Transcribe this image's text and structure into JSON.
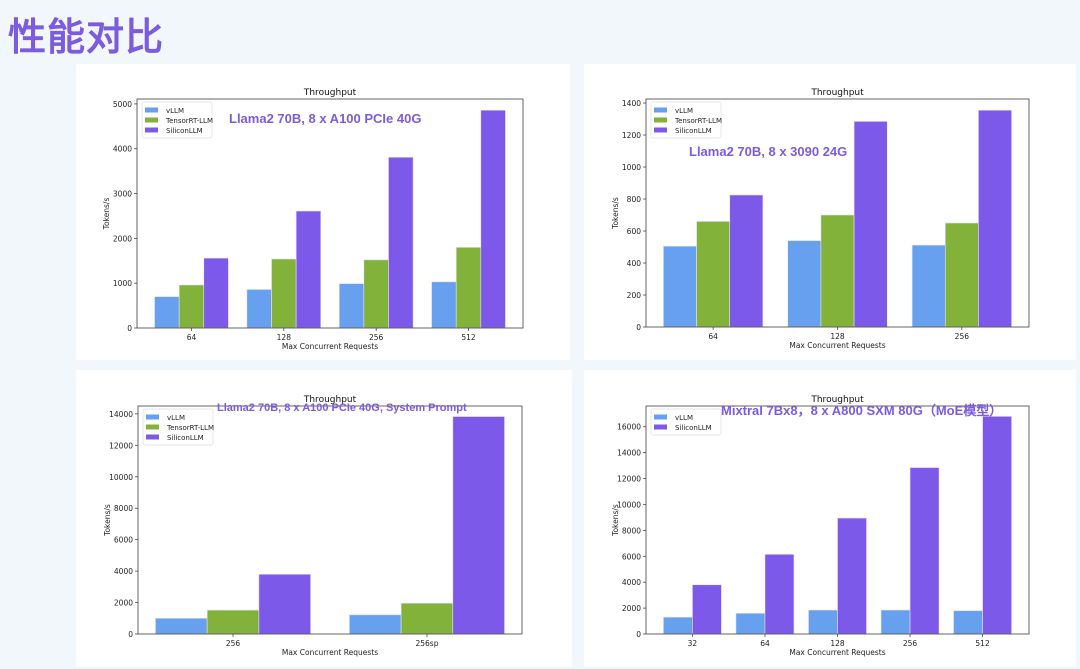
{
  "page": {
    "title": "性能对比"
  },
  "colors": {
    "vLLM": "#66a0ee",
    "TensorRT-LLM": "#83b23a",
    "SiliconLLM": "#7d59ea",
    "accent": "#7b5be0"
  },
  "chart_data": [
    {
      "type": "bar",
      "title": "Throughput",
      "annotation": "Llama2 70B, 8 x A100 PCIe 40G",
      "xlabel": "Max Concurrent Requests",
      "ylabel": "Tokens/s",
      "categories": [
        "64",
        "128",
        "256",
        "512"
      ],
      "series": [
        {
          "name": "vLLM",
          "values": [
            700,
            860,
            990,
            1030
          ]
        },
        {
          "name": "TensorRT-LLM",
          "values": [
            960,
            1540,
            1520,
            1800
          ]
        },
        {
          "name": "SiliconLLM",
          "values": [
            1560,
            2610,
            3810,
            4860
          ]
        }
      ],
      "yticks": [
        0,
        1000,
        2000,
        3000,
        4000,
        5000
      ],
      "ylim": [
        0,
        5110
      ],
      "legend": "top-left",
      "grid": false
    },
    {
      "type": "bar",
      "title": "Throughput",
      "annotation": "Llama2 70B, 8 x 3090 24G",
      "xlabel": "Max Concurrent Requests",
      "ylabel": "Tokens/s",
      "categories": [
        "64",
        "128",
        "256"
      ],
      "series": [
        {
          "name": "vLLM",
          "values": [
            505,
            540,
            512
          ]
        },
        {
          "name": "TensorRT-LLM",
          "values": [
            660,
            700,
            650
          ]
        },
        {
          "name": "SiliconLLM",
          "values": [
            825,
            1285,
            1355
          ]
        }
      ],
      "yticks": [
        0,
        200,
        400,
        600,
        800,
        1000,
        1200,
        1400
      ],
      "ylim": [
        0,
        1425
      ],
      "legend": "top-left",
      "grid": false
    },
    {
      "type": "bar",
      "title": "Throughput",
      "annotation": "Llama2 70B, 8 x A100 PCIe 40G, System Prompt",
      "xlabel": "Max Concurrent Requests",
      "ylabel": "Tokens/s",
      "categories": [
        "256",
        "256sp"
      ],
      "series": [
        {
          "name": "vLLM",
          "values": [
            1000,
            1220
          ]
        },
        {
          "name": "TensorRT-LLM",
          "values": [
            1520,
            1960
          ]
        },
        {
          "name": "SiliconLLM",
          "values": [
            3800,
            13830
          ]
        }
      ],
      "yticks": [
        0,
        2000,
        4000,
        6000,
        8000,
        10000,
        12000,
        14000
      ],
      "ylim": [
        0,
        14500
      ],
      "legend": "top-left",
      "grid": false
    },
    {
      "type": "bar",
      "title": "Throughput",
      "annotation": "Mixtral 7Bx8，8 x A800 SXM 80G（MoE模型）",
      "xlabel": "Max Concurrent Requests",
      "ylabel": "Tokens/s",
      "categories": [
        "32",
        "64",
        "128",
        "256",
        "512"
      ],
      "series": [
        {
          "name": "vLLM",
          "values": [
            1300,
            1600,
            1850,
            1850,
            1800
          ]
        },
        {
          "name": "SiliconLLM",
          "values": [
            3800,
            6150,
            8950,
            12850,
            16800
          ]
        }
      ],
      "yticks": [
        0,
        2000,
        4000,
        6000,
        8000,
        10000,
        12000,
        14000,
        16000
      ],
      "ylim": [
        0,
        17600
      ],
      "legend": "top-left",
      "grid": false
    }
  ]
}
